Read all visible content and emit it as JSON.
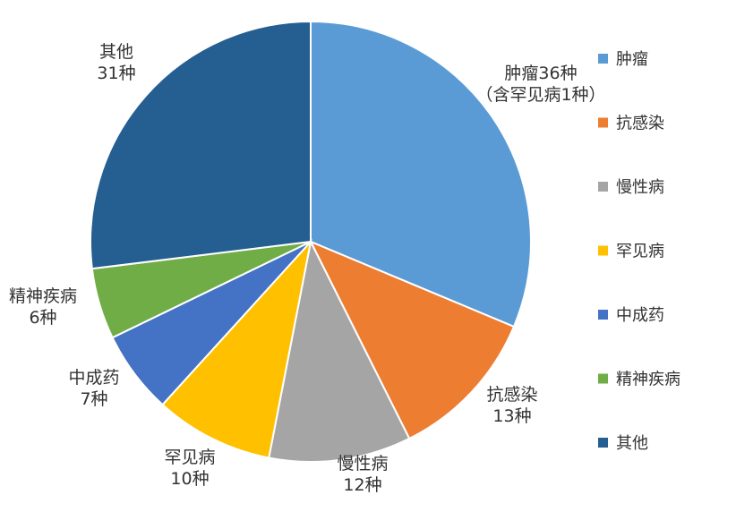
{
  "colors": {
    "肿瘤": "#5B9BD5",
    "抗感染": "#ED7D31",
    "慢性病": "#A5A5A5",
    "罕见病": "#FFC000",
    "中成药": "#4472C4",
    "精神疾病": "#70AD47",
    "其他": "#255E91"
  },
  "chart_data": {
    "type": "pie",
    "title": "",
    "legend_position": "right",
    "start_angle": "12 o'clock, clockwise",
    "slices": [
      {
        "name": "肿瘤",
        "value": 36,
        "label_lines": [
          "肿瘤36种",
          "（含罕见病1种）"
        ]
      },
      {
        "name": "抗感染",
        "value": 13,
        "label_lines": [
          "抗感染",
          "13种"
        ]
      },
      {
        "name": "慢性病",
        "value": 12,
        "label_lines": [
          "慢性病",
          "12种"
        ]
      },
      {
        "name": "罕见病",
        "value": 10,
        "label_lines": [
          "罕见病",
          "10种"
        ]
      },
      {
        "name": "中成药",
        "value": 7,
        "label_lines": [
          "中成药",
          "7种"
        ]
      },
      {
        "name": "精神疾病",
        "value": 6,
        "label_lines": [
          "精神疾病",
          "6种"
        ]
      },
      {
        "name": "其他",
        "value": 31,
        "label_lines": [
          "其他",
          "31种"
        ]
      }
    ],
    "legend": [
      "肿瘤",
      "抗感染",
      "慢性病",
      "罕见病",
      "中成药",
      "精神疾病",
      "其他"
    ]
  }
}
